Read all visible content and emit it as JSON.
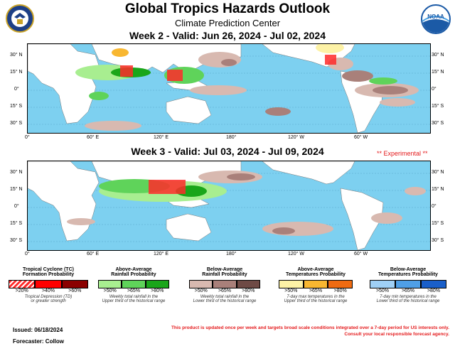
{
  "header": {
    "title": "Global Tropics Hazards Outlook",
    "subtitle": "Climate Prediction Center",
    "noaa_logo_text": "NOAA"
  },
  "week2": {
    "label": "Week 2 - Valid: Jun 26, 2024 - Jul 02, 2024"
  },
  "week3": {
    "label": "Week 3 - Valid: Jul 03, 2024 - Jul 09, 2024",
    "experimental": "** Experimental **"
  },
  "axes": {
    "lat_labels": [
      "30° N",
      "15° N",
      "0°",
      "15° S",
      "30° S"
    ],
    "lon_labels": [
      "0°",
      "60° E",
      "120° E",
      "180°",
      "120° W",
      "60° W"
    ]
  },
  "legend": {
    "tc": {
      "title_line1": "Tropical Cyclone (TC)",
      "title_line2": "Formation Probability",
      "levels": [
        ">20%",
        ">40%",
        ">60%"
      ],
      "colors": [
        "#ff2a2a",
        "#ff0000",
        "#8b0000"
      ],
      "note_line1": "Tropical Depression (TD)",
      "note_line2": "or greater strength"
    },
    "wet": {
      "title_line1": "Above-Average",
      "title_line2": "Rainfall Probability",
      "levels": [
        ">50%",
        ">65%",
        ">80%"
      ],
      "colors": [
        "#a8ee90",
        "#5fd35a",
        "#1aa61a"
      ],
      "note_line1": "Weekly total rainfall in the",
      "note_line2": "Upper third of the historical range"
    },
    "dry": {
      "title_line1": "Below-Average",
      "title_line2": "Rainfall Probability",
      "levels": [
        ">50%",
        ">65%",
        ">80%"
      ],
      "colors": [
        "#d8b9b0",
        "#a9807a",
        "#6e4a45"
      ],
      "note_line1": "Weekly total rainfall in the",
      "note_line2": "Lower third of the historical range"
    },
    "hot": {
      "title_line1": "Above-Average",
      "title_line2": "Temperatures Probability",
      "levels": [
        ">50%",
        ">65%",
        ">80%"
      ],
      "colors": [
        "#fdf2a6",
        "#f8b731",
        "#ef6b12"
      ],
      "note_line1": "7-day max temperatures in the",
      "note_line2": "Upper third of the historical range"
    },
    "cold": {
      "title_line1": "Below-Average",
      "title_line2": "Temperatures Probability",
      "levels": [
        ">50%",
        ">65%",
        ">80%"
      ],
      "colors": [
        "#9fd0f6",
        "#4f9fe6",
        "#1a5fc9"
      ],
      "note_line1": "7-day min temperatures in the",
      "note_line2": "Lower third of the historical range"
    }
  },
  "footer": {
    "issued": "Issued: 06/18/2024",
    "forecaster": "Forecaster: Collow",
    "disclaimer_line1": "This product is updated once per week and targets broad scale conditions integrated over a 7-day period for US interests only.",
    "disclaimer_line2": "Consult your local responsible forecast agency."
  },
  "colors": {
    "ocean": "#7dd0f0",
    "land": "#ffffff"
  }
}
